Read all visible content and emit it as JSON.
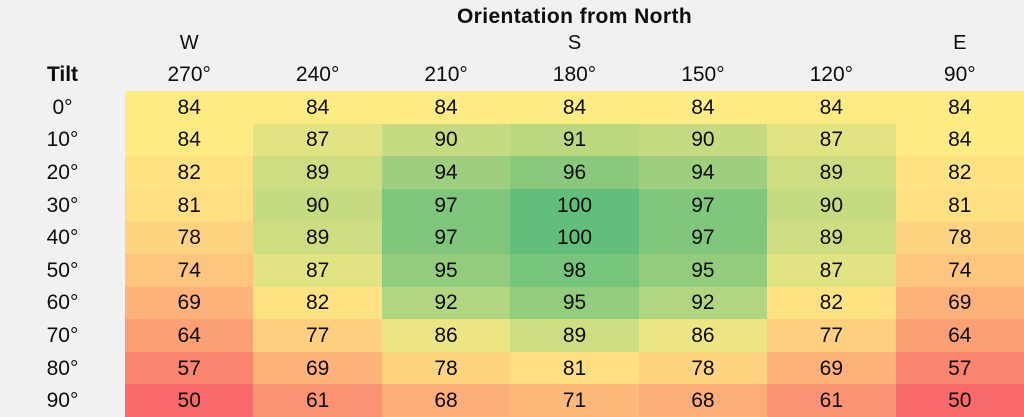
{
  "chart_data": {
    "type": "heatmap",
    "title": "Orientation from North",
    "row_axis_label": "Tilt",
    "column_direction_labels": [
      "W",
      "",
      "",
      "S",
      "",
      "",
      "E"
    ],
    "columns": [
      "270°",
      "240°",
      "210°",
      "180°",
      "150°",
      "120°",
      "90°"
    ],
    "rows": [
      "0°",
      "10°",
      "20°",
      "30°",
      "40°",
      "50°",
      "60°",
      "70°",
      "80°",
      "90°"
    ],
    "values": [
      [
        84,
        84,
        84,
        84,
        84,
        84,
        84
      ],
      [
        84,
        87,
        90,
        91,
        90,
        87,
        84
      ],
      [
        82,
        89,
        94,
        96,
        94,
        89,
        82
      ],
      [
        81,
        90,
        97,
        100,
        97,
        90,
        81
      ],
      [
        78,
        89,
        97,
        100,
        97,
        89,
        78
      ],
      [
        74,
        87,
        95,
        98,
        95,
        87,
        74
      ],
      [
        69,
        82,
        92,
        95,
        92,
        82,
        69
      ],
      [
        64,
        77,
        86,
        89,
        86,
        77,
        64
      ],
      [
        57,
        69,
        78,
        81,
        78,
        69,
        57
      ],
      [
        50,
        61,
        68,
        71,
        68,
        61,
        50
      ]
    ],
    "color_scale": {
      "min": {
        "value": 50,
        "color": "#f8696b"
      },
      "mid": {
        "value": 84,
        "color": "#ffeb84"
      },
      "max": {
        "value": 100,
        "color": "#63be7b"
      }
    },
    "background_color": "#f1f1f1",
    "text_color": "#0d0d0d",
    "legend_position": "none",
    "grid": false
  }
}
